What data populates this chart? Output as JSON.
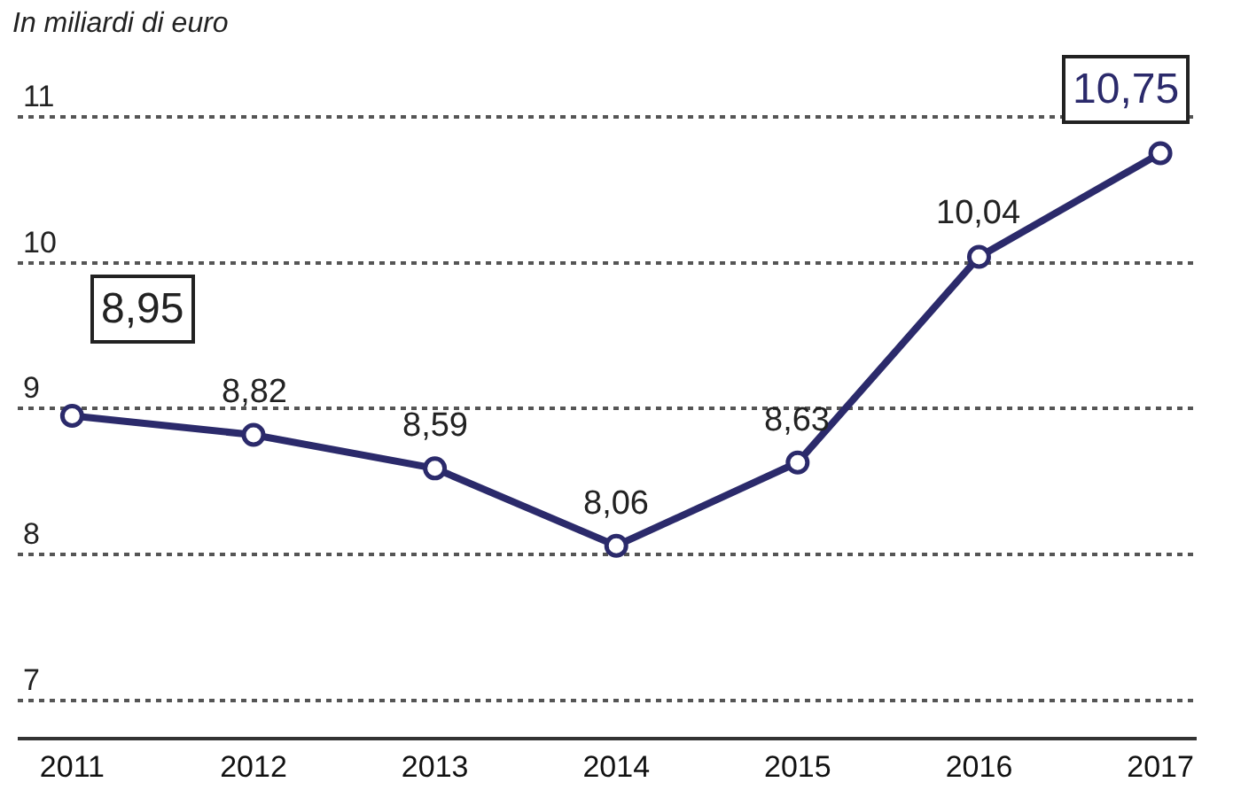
{
  "chart_data": {
    "type": "line",
    "subtitle": "In miliardi di euro",
    "categories": [
      "2011",
      "2012",
      "2013",
      "2014",
      "2015",
      "2016",
      "2017"
    ],
    "series": [
      {
        "color": "#2b2a6b",
        "values": [
          8.95,
          8.82,
          8.59,
          8.06,
          8.63,
          10.04,
          10.75
        ],
        "value_labels": [
          "8,95",
          "8,82",
          "8,59",
          "8,06",
          "8,63",
          "10,04",
          "10,75"
        ]
      }
    ],
    "ylim": [
      6.75,
      11.8
    ],
    "yticks": [
      7,
      8,
      9,
      10,
      11
    ],
    "grid": "y",
    "marker": "circle",
    "line_style": "solid",
    "legend": false
  }
}
